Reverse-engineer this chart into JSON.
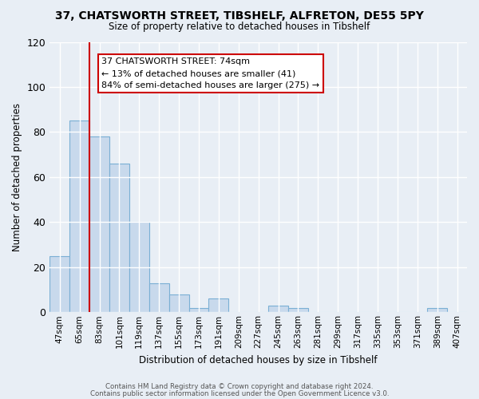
{
  "title1": "37, CHATSWORTH STREET, TIBSHELF, ALFRETON, DE55 5PY",
  "title2": "Size of property relative to detached houses in Tibshelf",
  "xlabel": "Distribution of detached houses by size in Tibshelf",
  "ylabel": "Number of detached properties",
  "footer1": "Contains HM Land Registry data © Crown copyright and database right 2024.",
  "footer2": "Contains public sector information licensed under the Open Government Licence v3.0.",
  "bin_labels": [
    "47sqm",
    "65sqm",
    "83sqm",
    "101sqm",
    "119sqm",
    "137sqm",
    "155sqm",
    "173sqm",
    "191sqm",
    "209sqm",
    "227sqm",
    "245sqm",
    "263sqm",
    "281sqm",
    "299sqm",
    "317sqm",
    "335sqm",
    "353sqm",
    "371sqm",
    "389sqm",
    "407sqm"
  ],
  "bar_heights": [
    25,
    85,
    78,
    66,
    40,
    13,
    8,
    2,
    6,
    0,
    0,
    3,
    2,
    0,
    0,
    0,
    0,
    0,
    0,
    2,
    0
  ],
  "bar_color": "#c8d9ec",
  "bar_edge_color": "#7aafd4",
  "ylim": [
    0,
    120
  ],
  "yticks": [
    0,
    20,
    40,
    60,
    80,
    100,
    120
  ],
  "vline_x_index": 1,
  "vline_color": "#cc0000",
  "annotation_title": "37 CHATSWORTH STREET: 74sqm",
  "annotation_line1": "← 13% of detached houses are smaller (41)",
  "annotation_line2": "84% of semi-detached houses are larger (275) →",
  "annotation_box_color": "#ffffff",
  "annotation_box_edge": "#cc0000",
  "bg_color": "#e8eef5"
}
